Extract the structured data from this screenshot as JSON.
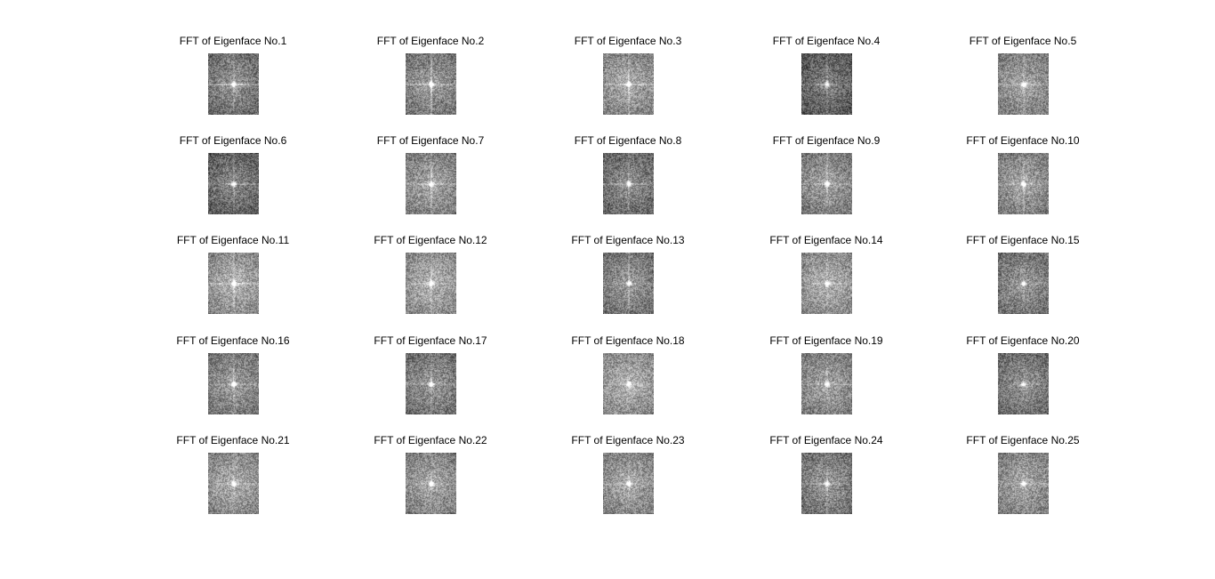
{
  "figure": {
    "subplots": [
      {
        "title": "FFT of Eigenface No.1",
        "tone": 0.38,
        "cross": 0.55,
        "vline": 0.3
      },
      {
        "title": "FFT of Eigenface No.2",
        "tone": 0.42,
        "cross": 0.45,
        "vline": 0.55
      },
      {
        "title": "FFT of Eigenface No.3",
        "tone": 0.48,
        "cross": 0.4,
        "vline": 0.35
      },
      {
        "title": "FFT of Eigenface No.4",
        "tone": 0.3,
        "cross": 0.35,
        "vline": 0.3
      },
      {
        "title": "FFT of Eigenface No.5",
        "tone": 0.45,
        "cross": 0.3,
        "vline": 0.25
      },
      {
        "title": "FFT of Eigenface No.6",
        "tone": 0.33,
        "cross": 0.4,
        "vline": 0.3
      },
      {
        "title": "FFT of Eigenface No.7",
        "tone": 0.46,
        "cross": 0.3,
        "vline": 0.3
      },
      {
        "title": "FFT of Eigenface No.8",
        "tone": 0.36,
        "cross": 0.35,
        "vline": 0.3
      },
      {
        "title": "FFT of Eigenface No.9",
        "tone": 0.44,
        "cross": 0.25,
        "vline": 0.3
      },
      {
        "title": "FFT of Eigenface No.10",
        "tone": 0.45,
        "cross": 0.25,
        "vline": 0.3
      },
      {
        "title": "FFT of Eigenface No.11",
        "tone": 0.5,
        "cross": 0.35,
        "vline": 0.3
      },
      {
        "title": "FFT of Eigenface No.12",
        "tone": 0.5,
        "cross": 0.25,
        "vline": 0.3
      },
      {
        "title": "FFT of Eigenface No.13",
        "tone": 0.4,
        "cross": 0.2,
        "vline": 0.3
      },
      {
        "title": "FFT of Eigenface No.14",
        "tone": 0.5,
        "cross": 0.2,
        "vline": 0.15
      },
      {
        "title": "FFT of Eigenface No.15",
        "tone": 0.4,
        "cross": 0.2,
        "vline": 0.15
      },
      {
        "title": "FFT of Eigenface No.16",
        "tone": 0.42,
        "cross": 0.25,
        "vline": 0.3
      },
      {
        "title": "FFT of Eigenface No.17",
        "tone": 0.4,
        "cross": 0.25,
        "vline": 0.3
      },
      {
        "title": "FFT of Eigenface No.18",
        "tone": 0.5,
        "cross": 0.2,
        "vline": 0.15
      },
      {
        "title": "FFT of Eigenface No.19",
        "tone": 0.45,
        "cross": 0.2,
        "vline": 0.15
      },
      {
        "title": "FFT of Eigenface No.20",
        "tone": 0.38,
        "cross": 0.15,
        "vline": 0.1
      },
      {
        "title": "FFT of Eigenface No.21",
        "tone": 0.48,
        "cross": 0.2,
        "vline": 0.15
      },
      {
        "title": "FFT of Eigenface No.22",
        "tone": 0.46,
        "cross": 0.2,
        "vline": 0.15
      },
      {
        "title": "FFT of Eigenface No.23",
        "tone": 0.47,
        "cross": 0.2,
        "vline": 0.15
      },
      {
        "title": "FFT of Eigenface No.24",
        "tone": 0.4,
        "cross": 0.25,
        "vline": 0.2
      },
      {
        "title": "FFT of Eigenface No.25",
        "tone": 0.46,
        "cross": 0.2,
        "vline": 0.15
      }
    ]
  }
}
